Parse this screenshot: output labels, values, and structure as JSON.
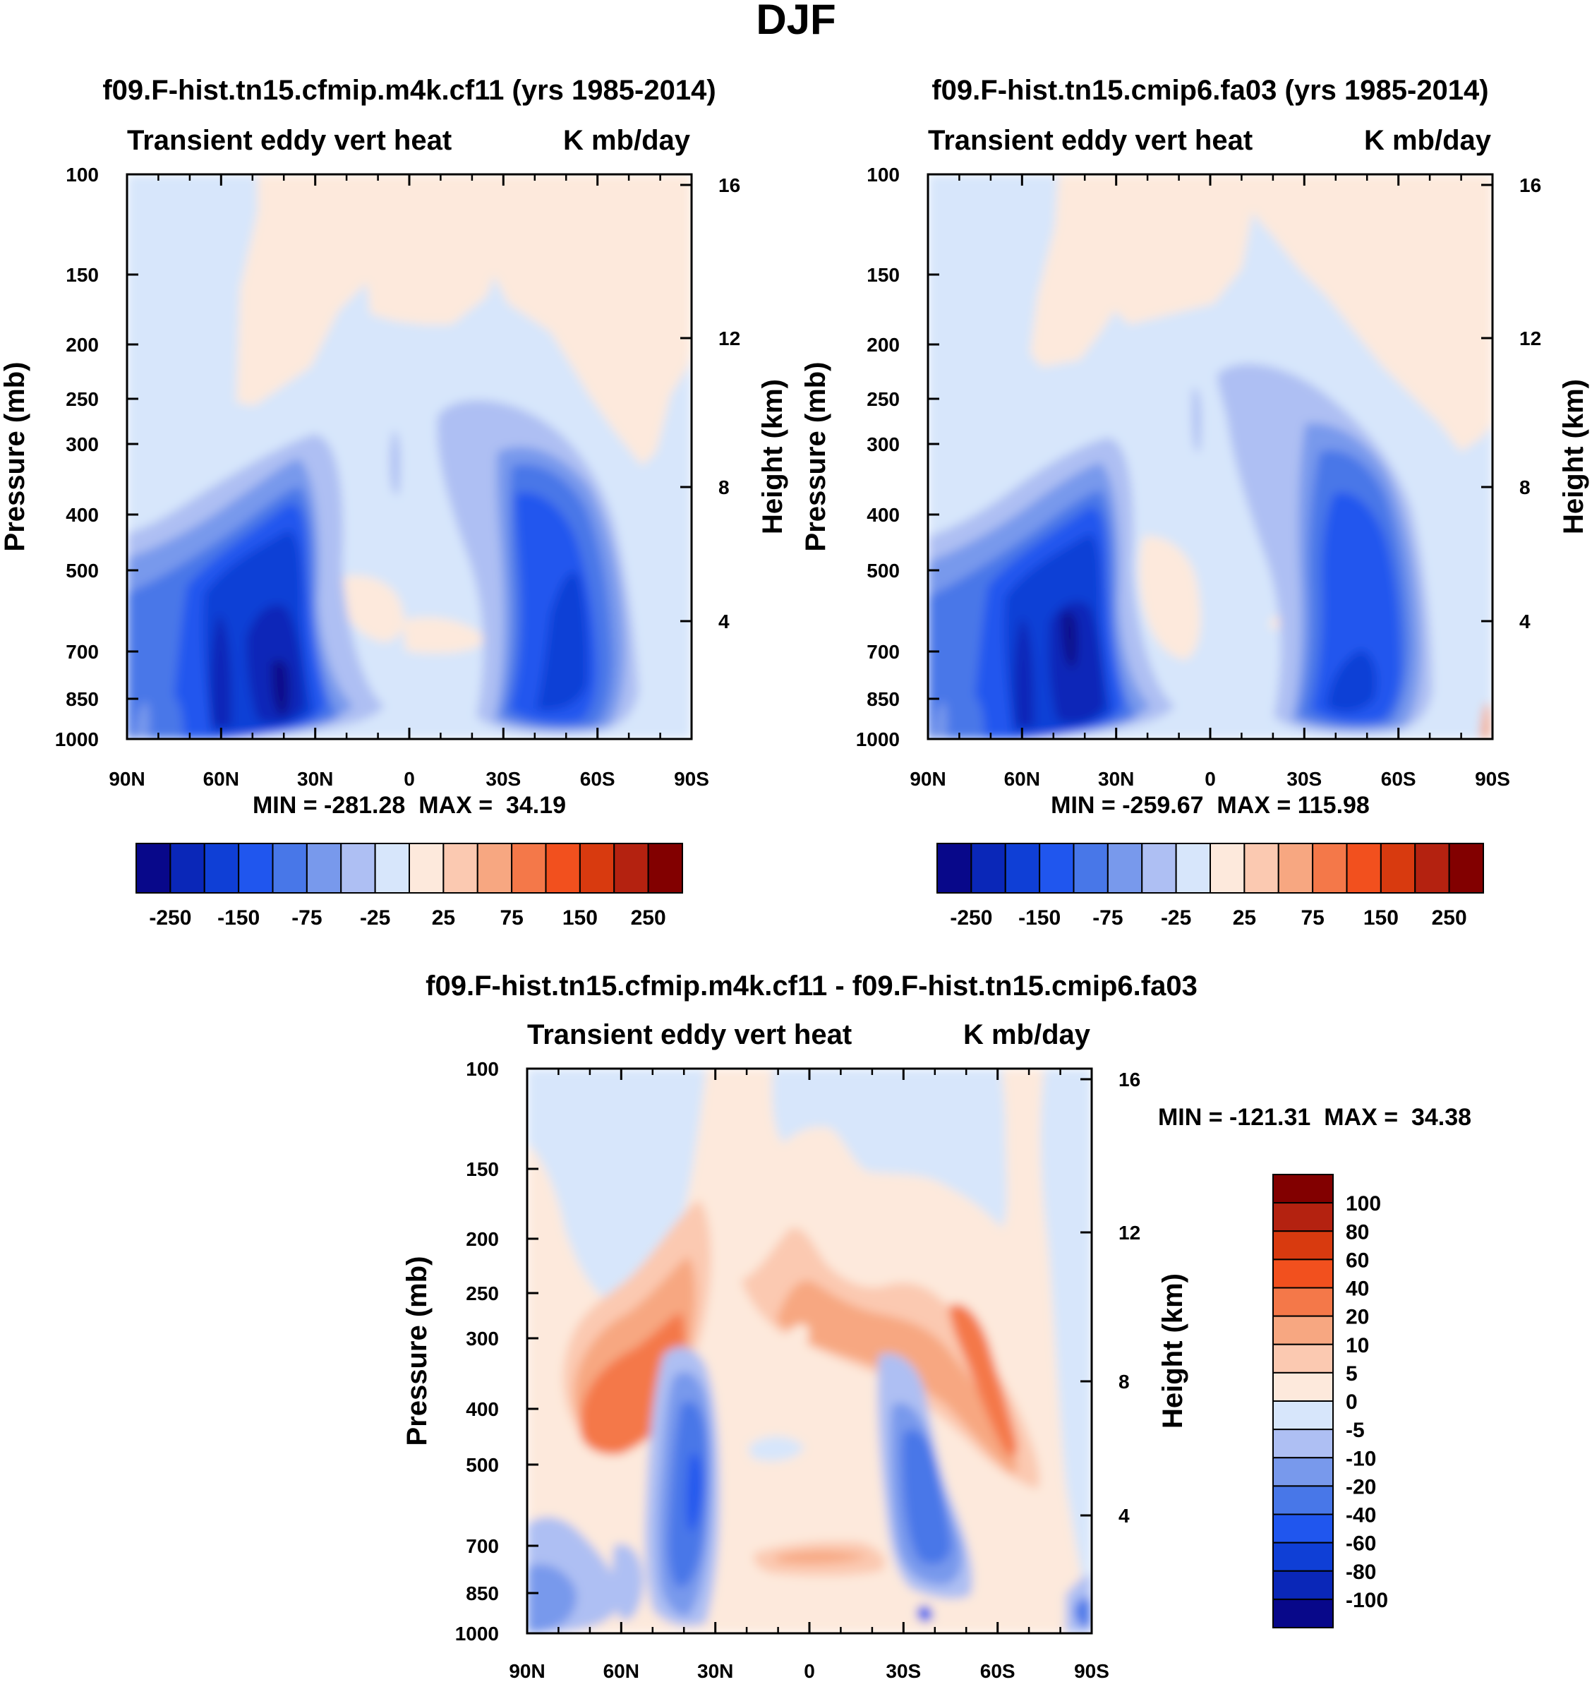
{
  "figure": {
    "title": "DJF"
  },
  "colors": {
    "main": [
      "#08088a",
      "#0a27b8",
      "#0f3fd6",
      "#2056ee",
      "#4877e8",
      "#7899ec",
      "#aebff3",
      "#d7e6fb",
      "#fde9dc",
      "#fbc9b1",
      "#f7a781",
      "#f47849",
      "#f2501e",
      "#d83a0f",
      "#b42210",
      "#820000"
    ],
    "diff": [
      "#08088a",
      "#0a27b8",
      "#0f3fd6",
      "#2056ee",
      "#4877e8",
      "#7899ec",
      "#aebff3",
      "#d7e6fb",
      "#fde9dc",
      "#fbc9b1",
      "#f7a781",
      "#f47849",
      "#f2501e",
      "#d83a0f",
      "#b42210",
      "#820000"
    ]
  },
  "colorbar_main": {
    "labels": [
      "-250",
      "-150",
      "-75",
      "-25",
      "25",
      "75",
      "150",
      "250"
    ]
  },
  "colorbar_diff": {
    "labels": [
      "100",
      "80",
      "60",
      "40",
      "20",
      "10",
      "5",
      "0",
      "-5",
      "-10",
      "-20",
      "-40",
      "-60",
      "-80",
      "-100"
    ]
  },
  "chart_data": [
    {
      "type": "heatmap",
      "title": "f09.F-hist.tn15.cfmip.m4k.cf11 (yrs 1985-2014)",
      "left_label": "Transient eddy vert heat",
      "right_label": "K mb/day",
      "ylabel": "Pressure (mb)",
      "y2label": "Height (km)",
      "x_ticks": [
        "90N",
        "60N",
        "30N",
        "0",
        "30S",
        "60S",
        "90S"
      ],
      "y_ticks": [
        "100",
        "150",
        "200",
        "250",
        "300",
        "400",
        "500",
        "700",
        "850",
        "1000"
      ],
      "y2_ticks": [
        "16",
        "12",
        "8",
        "4"
      ],
      "min_max_label": "MIN = -281.28  MAX =  34.19",
      "min": -281.28,
      "max": 34.19,
      "xlim": [
        90,
        -90
      ],
      "ylim": [
        1000,
        100
      ]
    },
    {
      "type": "heatmap",
      "title": "f09.F-hist.tn15.cmip6.fa03 (yrs 1985-2014)",
      "left_label": "Transient eddy vert heat",
      "right_label": "K mb/day",
      "ylabel": "Pressure (mb)",
      "y2label": "Height (km)",
      "x_ticks": [
        "90N",
        "60N",
        "30N",
        "0",
        "30S",
        "60S",
        "90S"
      ],
      "y_ticks": [
        "100",
        "150",
        "200",
        "250",
        "300",
        "400",
        "500",
        "700",
        "850",
        "1000"
      ],
      "y2_ticks": [
        "16",
        "12",
        "8",
        "4"
      ],
      "min_max_label": "MIN = -259.67  MAX = 115.98",
      "min": -259.67,
      "max": 115.98,
      "xlim": [
        90,
        -90
      ],
      "ylim": [
        1000,
        100
      ]
    },
    {
      "type": "heatmap",
      "title": "f09.F-hist.tn15.cfmip.m4k.cf11 - f09.F-hist.tn15.cmip6.fa03",
      "left_label": "Transient eddy vert heat",
      "right_label": "K mb/day",
      "ylabel": "Pressure (mb)",
      "y2label": "Height (km)",
      "x_ticks": [
        "90N",
        "60N",
        "30N",
        "0",
        "30S",
        "60S",
        "90S"
      ],
      "y_ticks": [
        "100",
        "150",
        "200",
        "250",
        "300",
        "400",
        "500",
        "700",
        "850",
        "1000"
      ],
      "y2_ticks": [
        "16",
        "12",
        "8",
        "4"
      ],
      "min_max_label": "MIN = -121.31  MAX =  34.38",
      "min": -121.31,
      "max": 34.38,
      "xlim": [
        90,
        -90
      ],
      "ylim": [
        1000,
        100
      ]
    }
  ]
}
